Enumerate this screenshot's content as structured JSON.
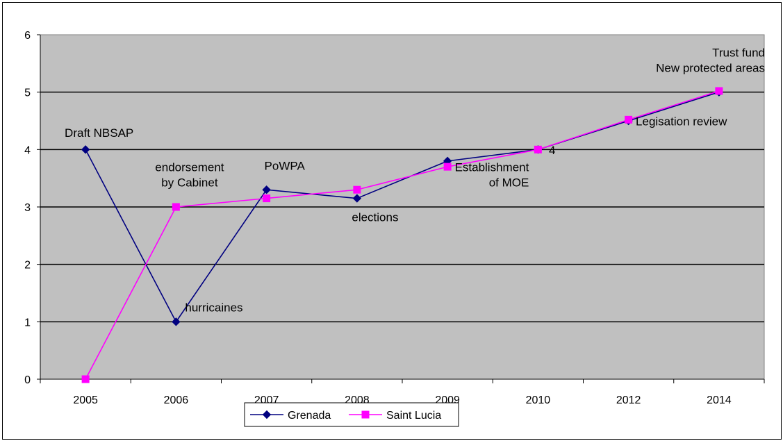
{
  "chart_data": {
    "type": "line",
    "categories": [
      "2005",
      "2006",
      "2007",
      "2008",
      "2009",
      "2010",
      "2012",
      "2014"
    ],
    "ylim": [
      0,
      6
    ],
    "yticks": [
      "0",
      "1",
      "2",
      "3",
      "4",
      "5",
      "6"
    ],
    "grid": true,
    "legend_position": "bottom",
    "series": [
      {
        "name": "Grenada",
        "color": "#000080",
        "marker": "diamond",
        "values": [
          4,
          1,
          3.3,
          3.15,
          3.8,
          4,
          4.5,
          5
        ]
      },
      {
        "name": "Saint Lucia",
        "color": "#ff00ff",
        "marker": "square",
        "values": [
          0,
          3,
          3.15,
          3.3,
          3.7,
          4,
          4.52,
          5.02
        ]
      }
    ],
    "annotations": [
      {
        "id": "draft",
        "lines": [
          "Draft NBSAP"
        ]
      },
      {
        "id": "endorse",
        "lines": [
          "endorsement",
          "by Cabinet"
        ]
      },
      {
        "id": "hurricanes",
        "lines": [
          "hurricaines"
        ]
      },
      {
        "id": "powpa",
        "lines": [
          "PoWPA"
        ]
      },
      {
        "id": "elections",
        "lines": [
          "elections"
        ]
      },
      {
        "id": "moe",
        "lines": [
          "Establishment",
          "of MOE"
        ]
      },
      {
        "id": "four",
        "lines": [
          "4"
        ]
      },
      {
        "id": "legis",
        "lines": [
          "Legisation review"
        ]
      },
      {
        "id": "trust",
        "lines": [
          "Trust fund",
          "New  protected areas"
        ]
      }
    ]
  }
}
